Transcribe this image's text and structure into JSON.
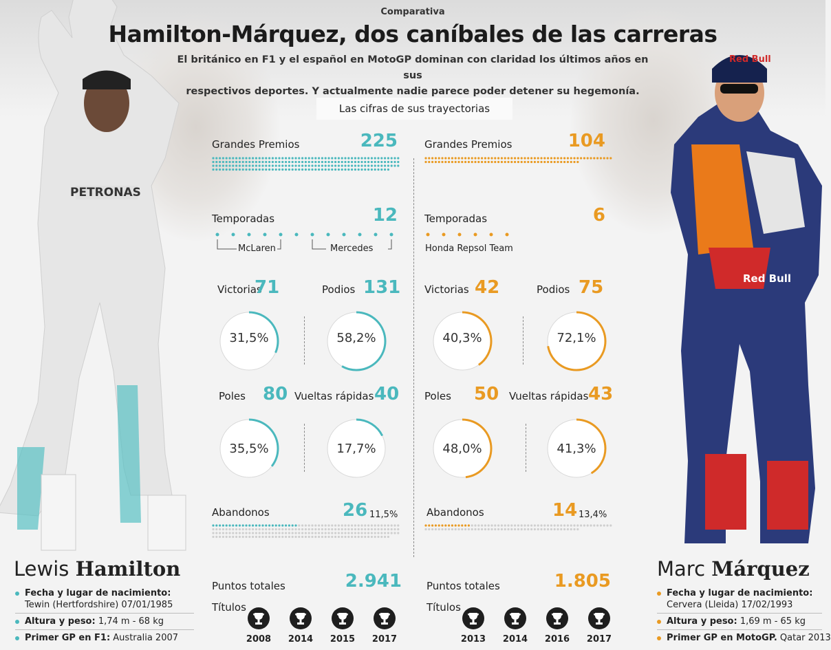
{
  "header": {
    "kicker": "Comparativa",
    "title": "Hamilton-Márquez, dos caníbales de las carreras",
    "subtitle_line1": "El británico en F1 y el español en MotoGP dominan con claridad los últimos años en sus",
    "subtitle_line2": "respectivos deportes. Y actualmente nadie parece poder detener su hegemonía.",
    "section_label": "Las cifras de sus trayectorias"
  },
  "colors": {
    "hamilton": "#4ab8bd",
    "marquez": "#e99a22"
  },
  "hamilton": {
    "first_name": "Lewis",
    "last_name": "Hamilton",
    "gp_label": "Grandes Premios",
    "gp_value": "225",
    "seasons_label": "Temporadas",
    "seasons_value": "12",
    "team1": "McLaren",
    "team2": "Mercedes",
    "wins_label": "Victorias",
    "wins_value": "71",
    "wins_pct": "31,5%",
    "podiums_label": "Podios",
    "podiums_value": "131",
    "podiums_pct": "58,2%",
    "poles_label": "Poles",
    "poles_value": "80",
    "poles_pct": "35,5%",
    "fastlaps_label": "Vueltas rápidas",
    "fastlaps_value": "40",
    "fastlaps_pct": "17,7%",
    "dnf_label": "Abandonos",
    "dnf_value": "26",
    "dnf_pct": "11,5%",
    "points_label": "Puntos totales",
    "points_value": "2.941",
    "titles_label": "Títulos",
    "titles": [
      "2008",
      "2014",
      "2015",
      "2017"
    ],
    "bio": [
      {
        "key": "Fecha y lugar de nacimiento:",
        "value": "Tewin (Hertfordshire)  07/01/1985",
        "newline": true
      },
      {
        "key": "Altura y peso:",
        "value": " 1,74 m - 68 kg",
        "newline": false
      },
      {
        "key": "Primer GP en F1:",
        "value": " Australia 2007",
        "newline": false
      }
    ]
  },
  "marquez": {
    "first_name": "Marc",
    "last_name": "Márquez",
    "gp_label": "Grandes Premios",
    "gp_value": "104",
    "seasons_label": "Temporadas",
    "seasons_value": "6",
    "team1": "Honda Repsol Team",
    "wins_label": "Victorias",
    "wins_value": "42",
    "wins_pct": "40,3%",
    "podiums_label": "Podios",
    "podiums_value": "75",
    "podiums_pct": "72,1%",
    "poles_label": "Poles",
    "poles_value": "50",
    "poles_pct": "48,0%",
    "fastlaps_label": "Vueltas rápidas",
    "fastlaps_value": "43",
    "fastlaps_pct": "41,3%",
    "dnf_label": "Abandonos",
    "dnf_value": "14",
    "dnf_pct": "13,4%",
    "points_label": "Puntos totales",
    "points_value": "1.805",
    "titles_label": "Títulos",
    "titles": [
      "2013",
      "2014",
      "2016",
      "2017"
    ],
    "bio": [
      {
        "key": "Fecha y lugar de nacimiento:",
        "value": "Cervera (Lleida)  17/02/1993",
        "newline": true
      },
      {
        "key": "Altura y peso:",
        "value": " 1,69 m - 65 kg",
        "newline": false
      },
      {
        "key": "Primer GP en MotoGP.",
        "value": " Qatar 2013",
        "newline": false
      }
    ]
  },
  "stats_fraction": {
    "hamilton": {
      "wins": 0.315,
      "podiums": 0.582,
      "poles": 0.355,
      "fastlaps": 0.177,
      "dnf": 0.115,
      "gp_dots": 225,
      "dnf_dots": 26
    },
    "marquez": {
      "wins": 0.403,
      "podiums": 0.721,
      "poles": 0.48,
      "fastlaps": 0.413,
      "dnf": 0.134,
      "gp_dots": 104,
      "dnf_dots": 14
    }
  },
  "icons": {
    "trophy": "trophy-icon",
    "bullet": "bullet-icon"
  }
}
